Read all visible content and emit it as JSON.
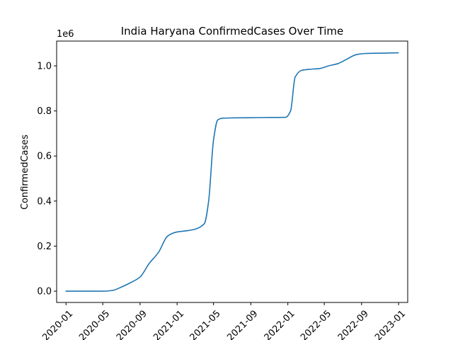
{
  "chart_data": {
    "type": "line",
    "title": "India Haryana ConfirmedCases Over Time",
    "xlabel": "",
    "ylabel": "ConfirmedCases",
    "y_offset_label": "1e6",
    "xlim": [
      "2019-12-01",
      "2023-01-31"
    ],
    "ylim": [
      -0.05,
      1.11
    ],
    "x_ticks": [
      {
        "date": "2020-01-01",
        "label": "2020-01"
      },
      {
        "date": "2020-05-01",
        "label": "2020-05"
      },
      {
        "date": "2020-09-01",
        "label": "2020-09"
      },
      {
        "date": "2021-01-01",
        "label": "2021-01"
      },
      {
        "date": "2021-05-01",
        "label": "2021-05"
      },
      {
        "date": "2021-09-01",
        "label": "2021-09"
      },
      {
        "date": "2022-01-01",
        "label": "2022-01"
      },
      {
        "date": "2022-05-01",
        "label": "2022-05"
      },
      {
        "date": "2022-09-01",
        "label": "2022-09"
      },
      {
        "date": "2023-01-01",
        "label": "2023-01"
      }
    ],
    "y_ticks": [
      {
        "value": 0.0,
        "label": "0.0"
      },
      {
        "value": 0.2,
        "label": "0.2"
      },
      {
        "value": 0.4,
        "label": "0.4"
      },
      {
        "value": 0.6,
        "label": "0.6"
      },
      {
        "value": 0.8,
        "label": "0.8"
      },
      {
        "value": 1.0,
        "label": "1.0"
      }
    ],
    "grid": false,
    "legend": "none",
    "series": [
      {
        "color": "#1f77b4",
        "x": [
          "2020-01-01",
          "2020-03-01",
          "2020-05-01",
          "2020-06-01",
          "2020-07-01",
          "2020-08-01",
          "2020-09-01",
          "2020-10-01",
          "2020-11-01",
          "2020-12-01",
          "2021-01-01",
          "2021-02-01",
          "2021-03-01",
          "2021-04-01",
          "2021-04-15",
          "2021-05-01",
          "2021-05-15",
          "2021-06-01",
          "2021-07-01",
          "2021-09-01",
          "2021-11-01",
          "2021-12-25",
          "2022-01-10",
          "2022-01-25",
          "2022-02-15",
          "2022-03-15",
          "2022-04-15",
          "2022-05-15",
          "2022-06-15",
          "2022-07-15",
          "2022-08-15",
          "2022-09-15",
          "2022-10-15",
          "2022-12-01",
          "2022-12-31"
        ],
        "y": [
          0.0,
          0.0,
          0.0,
          0.003,
          0.018,
          0.038,
          0.063,
          0.123,
          0.173,
          0.245,
          0.263,
          0.268,
          0.275,
          0.3,
          0.4,
          0.67,
          0.76,
          0.768,
          0.769,
          0.77,
          0.771,
          0.772,
          0.8,
          0.95,
          0.98,
          0.985,
          0.988,
          1.0,
          1.01,
          1.03,
          1.05,
          1.055,
          1.056,
          1.057,
          1.058
        ]
      }
    ]
  }
}
